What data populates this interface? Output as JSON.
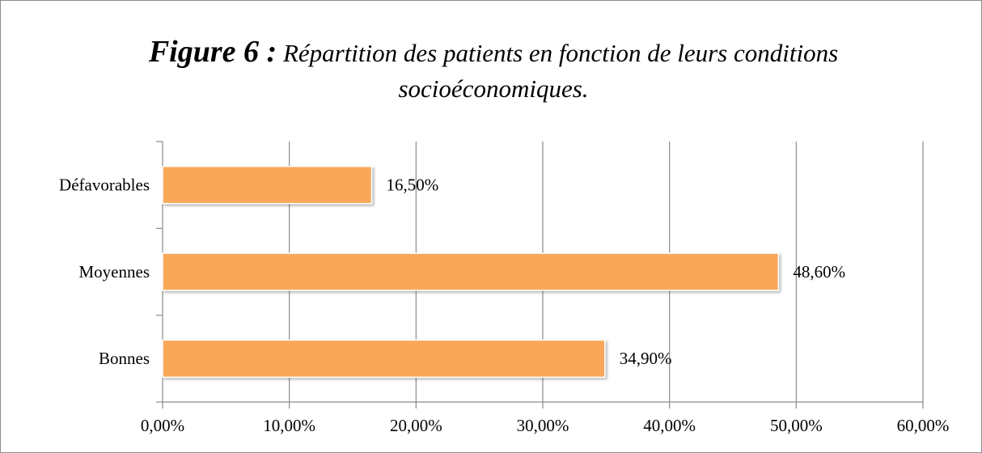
{
  "chart_data": {
    "type": "barh",
    "title_label": "Figure 6 :",
    "title": "Répartition des patients en fonction de leurs conditions socioéconomiques.",
    "categories": [
      "Bonnes",
      "Moyennes",
      "Défavorables"
    ],
    "values": [
      34.9,
      48.6,
      16.5
    ],
    "value_labels": [
      "34,90%",
      "48,60%",
      "16,50%"
    ],
    "color": "#f9a85a",
    "xlim": [
      0,
      60
    ],
    "xticks": [
      {
        "value": 0,
        "label": "0,00%"
      },
      {
        "value": 10,
        "label": "10,00%"
      },
      {
        "value": 20,
        "label": "20,00%"
      },
      {
        "value": 30,
        "label": "30,00%"
      },
      {
        "value": 40,
        "label": "40,00%"
      },
      {
        "value": 50,
        "label": "50,00%"
      },
      {
        "value": 60,
        "label": "60,00%"
      }
    ],
    "grid": true
  }
}
